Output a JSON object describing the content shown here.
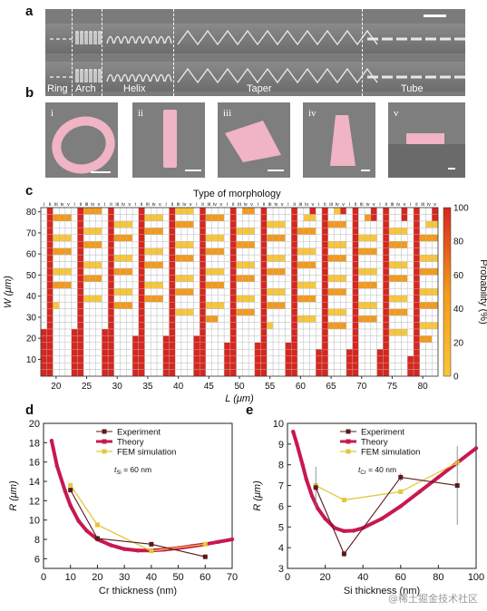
{
  "panels": {
    "a": {
      "label": "a",
      "segments": [
        "Ring",
        "Arch",
        "Helix",
        "Taper",
        "Tube"
      ]
    },
    "b": {
      "label": "b",
      "thumbs": [
        "i",
        "ii",
        "iii",
        "iv",
        "v"
      ]
    },
    "c": {
      "label": "c",
      "title": "Type of morphology",
      "type_labels": [
        "i",
        "ii",
        "iii",
        "iv",
        "v"
      ],
      "ylabel": "W (μm)",
      "xlabel": "L (μm)",
      "colorbar_label": "Probability (%)"
    },
    "d": {
      "label": "d",
      "annotation": "tSi = 60 nm"
    },
    "e": {
      "label": "e",
      "annotation": "tCr = 40 nm"
    }
  },
  "watermark": "@稀土掘金技术社区",
  "colors": {
    "red": "#d7261e",
    "orange": "#f39a1c",
    "yellow": "#f8c63a",
    "theory": "#c8184f",
    "experiment": "#5a1a1a",
    "fem": "#e5c63a",
    "sem": "#7b7b7b",
    "pink": "#f0b4c4"
  },
  "chart_data": [
    {
      "type": "heatmap",
      "title": "Type of morphology",
      "xlabel": "L (μm)",
      "ylabel": "W (μm)",
      "x": [
        20,
        25,
        30,
        35,
        40,
        45,
        50,
        55,
        60,
        65,
        70,
        75,
        80
      ],
      "y_ticks": [
        10,
        20,
        30,
        40,
        50,
        60,
        70,
        80
      ],
      "ylim": [
        2,
        82
      ],
      "colorbar": {
        "label": "Probability (%)",
        "range": [
          0,
          100
        ],
        "ticks": [
          0,
          20,
          40,
          60,
          80,
          100
        ]
      },
      "sub_columns": [
        "i",
        "ii",
        "iii",
        "iv",
        "v"
      ]
    },
    {
      "type": "line",
      "xlabel": "Cr thickness (nm)",
      "ylabel": "R (μm)",
      "xlim": [
        0,
        70
      ],
      "ylim": [
        5,
        20
      ],
      "x_ticks": [
        0,
        10,
        20,
        30,
        40,
        50,
        60,
        70
      ],
      "y_ticks": [
        6,
        8,
        10,
        12,
        14,
        16,
        18,
        20
      ],
      "legend": "top-right",
      "series": [
        {
          "name": "Experiment",
          "x": [
            10,
            20,
            40,
            60
          ],
          "y": [
            13.1,
            8.1,
            7.5,
            6.2
          ]
        },
        {
          "name": "Theory",
          "x": [
            3,
            5,
            8,
            10,
            13,
            16,
            20,
            25,
            30,
            35,
            40,
            45,
            50,
            55,
            60,
            65,
            70
          ],
          "y": [
            18.2,
            15.6,
            13.0,
            11.5,
            9.9,
            8.9,
            8.0,
            7.4,
            7.0,
            6.85,
            6.85,
            6.95,
            7.1,
            7.3,
            7.5,
            7.75,
            8.0
          ]
        },
        {
          "name": "FEM simulation",
          "x": [
            10,
            20,
            40,
            60
          ],
          "y": [
            13.6,
            9.5,
            6.8,
            7.5
          ]
        }
      ]
    },
    {
      "type": "line",
      "xlabel": "Si thickness (nm)",
      "ylabel": "R (μm)",
      "xlim": [
        0,
        100
      ],
      "ylim": [
        3,
        10
      ],
      "x_ticks": [
        0,
        20,
        40,
        60,
        80,
        100
      ],
      "y_ticks": [
        3,
        4,
        5,
        6,
        7,
        8,
        9,
        10
      ],
      "legend": "top-right",
      "series": [
        {
          "name": "Experiment",
          "x": [
            15,
            30,
            60,
            90
          ],
          "y": [
            6.9,
            3.7,
            7.4,
            7.0
          ],
          "err": [
            1.0,
            0.15,
            0.2,
            1.9
          ]
        },
        {
          "name": "Theory",
          "x": [
            3,
            5,
            8,
            10,
            13,
            16,
            20,
            25,
            30,
            35,
            40,
            50,
            60,
            70,
            80,
            90,
            100
          ],
          "y": [
            9.6,
            9.0,
            8.0,
            7.3,
            6.5,
            5.9,
            5.4,
            4.95,
            4.8,
            4.82,
            4.95,
            5.4,
            6.0,
            6.7,
            7.4,
            8.1,
            8.8
          ]
        },
        {
          "name": "FEM simulation",
          "x": [
            15,
            30,
            60,
            90
          ],
          "y": [
            7.0,
            6.3,
            6.7,
            8.1
          ]
        }
      ]
    }
  ]
}
